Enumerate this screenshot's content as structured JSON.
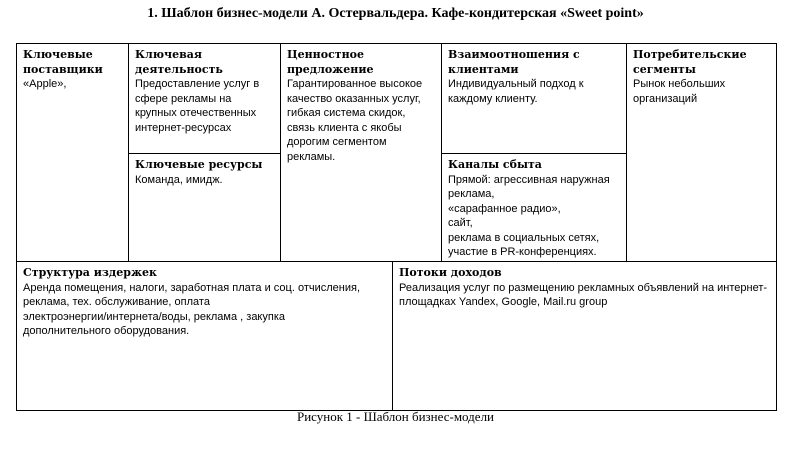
{
  "title": "1. Шаблон бизнес-модели А. Остервальдера. Кафе-кондитерская «Sweet point»",
  "caption": "Рисунок 1 - Шаблон бизнес-модели",
  "cells": {
    "partners": {
      "heading": "Ключевые\nпоставщики",
      "text": "«Apple»,"
    },
    "activities": {
      "heading": "Ключевая\nдеятельность",
      "text": "Предоставление услуг в\nсфере рекламы на\nкрупных отечественных\nинтернет-ресурсах"
    },
    "resources": {
      "heading": "Ключевые ресурсы",
      "text": "Команда, имидж."
    },
    "value": {
      "heading": "Ценностное предложение",
      "text": "Гарантированное высокое\nкачество оказанных услуг,\nгибкая система скидок,\nсвязь клиента с якобы\nдорогим сегментом\nрекламы."
    },
    "relationships": {
      "heading": "Взаимоотношения с\nклиентами",
      "text": "Индивидуальный подход к\nкаждому клиенту."
    },
    "channels": {
      "heading": "Каналы сбыта",
      "text": "Прямой: агрессивная наружная\nреклама,\n«сарафанное радио»,\nсайт,\nреклама в социальных сетях,\nучастие в PR-конференциях."
    },
    "segments": {
      "heading": "Потребительские\nсегменты",
      "text": "Рынок небольших\nорганизаций"
    },
    "costs": {
      "heading": "Структура издержек",
      "text": "Аренда помещения, налоги, заработная плата и соц. отчисления,\nреклама, тех. обслуживание, оплата\nэлектроэнергии/интернета/воды, реклама , закупка\nдополнительного оборудования."
    },
    "revenue": {
      "heading": "Потоки доходов",
      "text": "Реализация услуг по размещению рекламных объявлений на интернет-\nплощадках Yandex, Google, Mail.ru group"
    }
  }
}
